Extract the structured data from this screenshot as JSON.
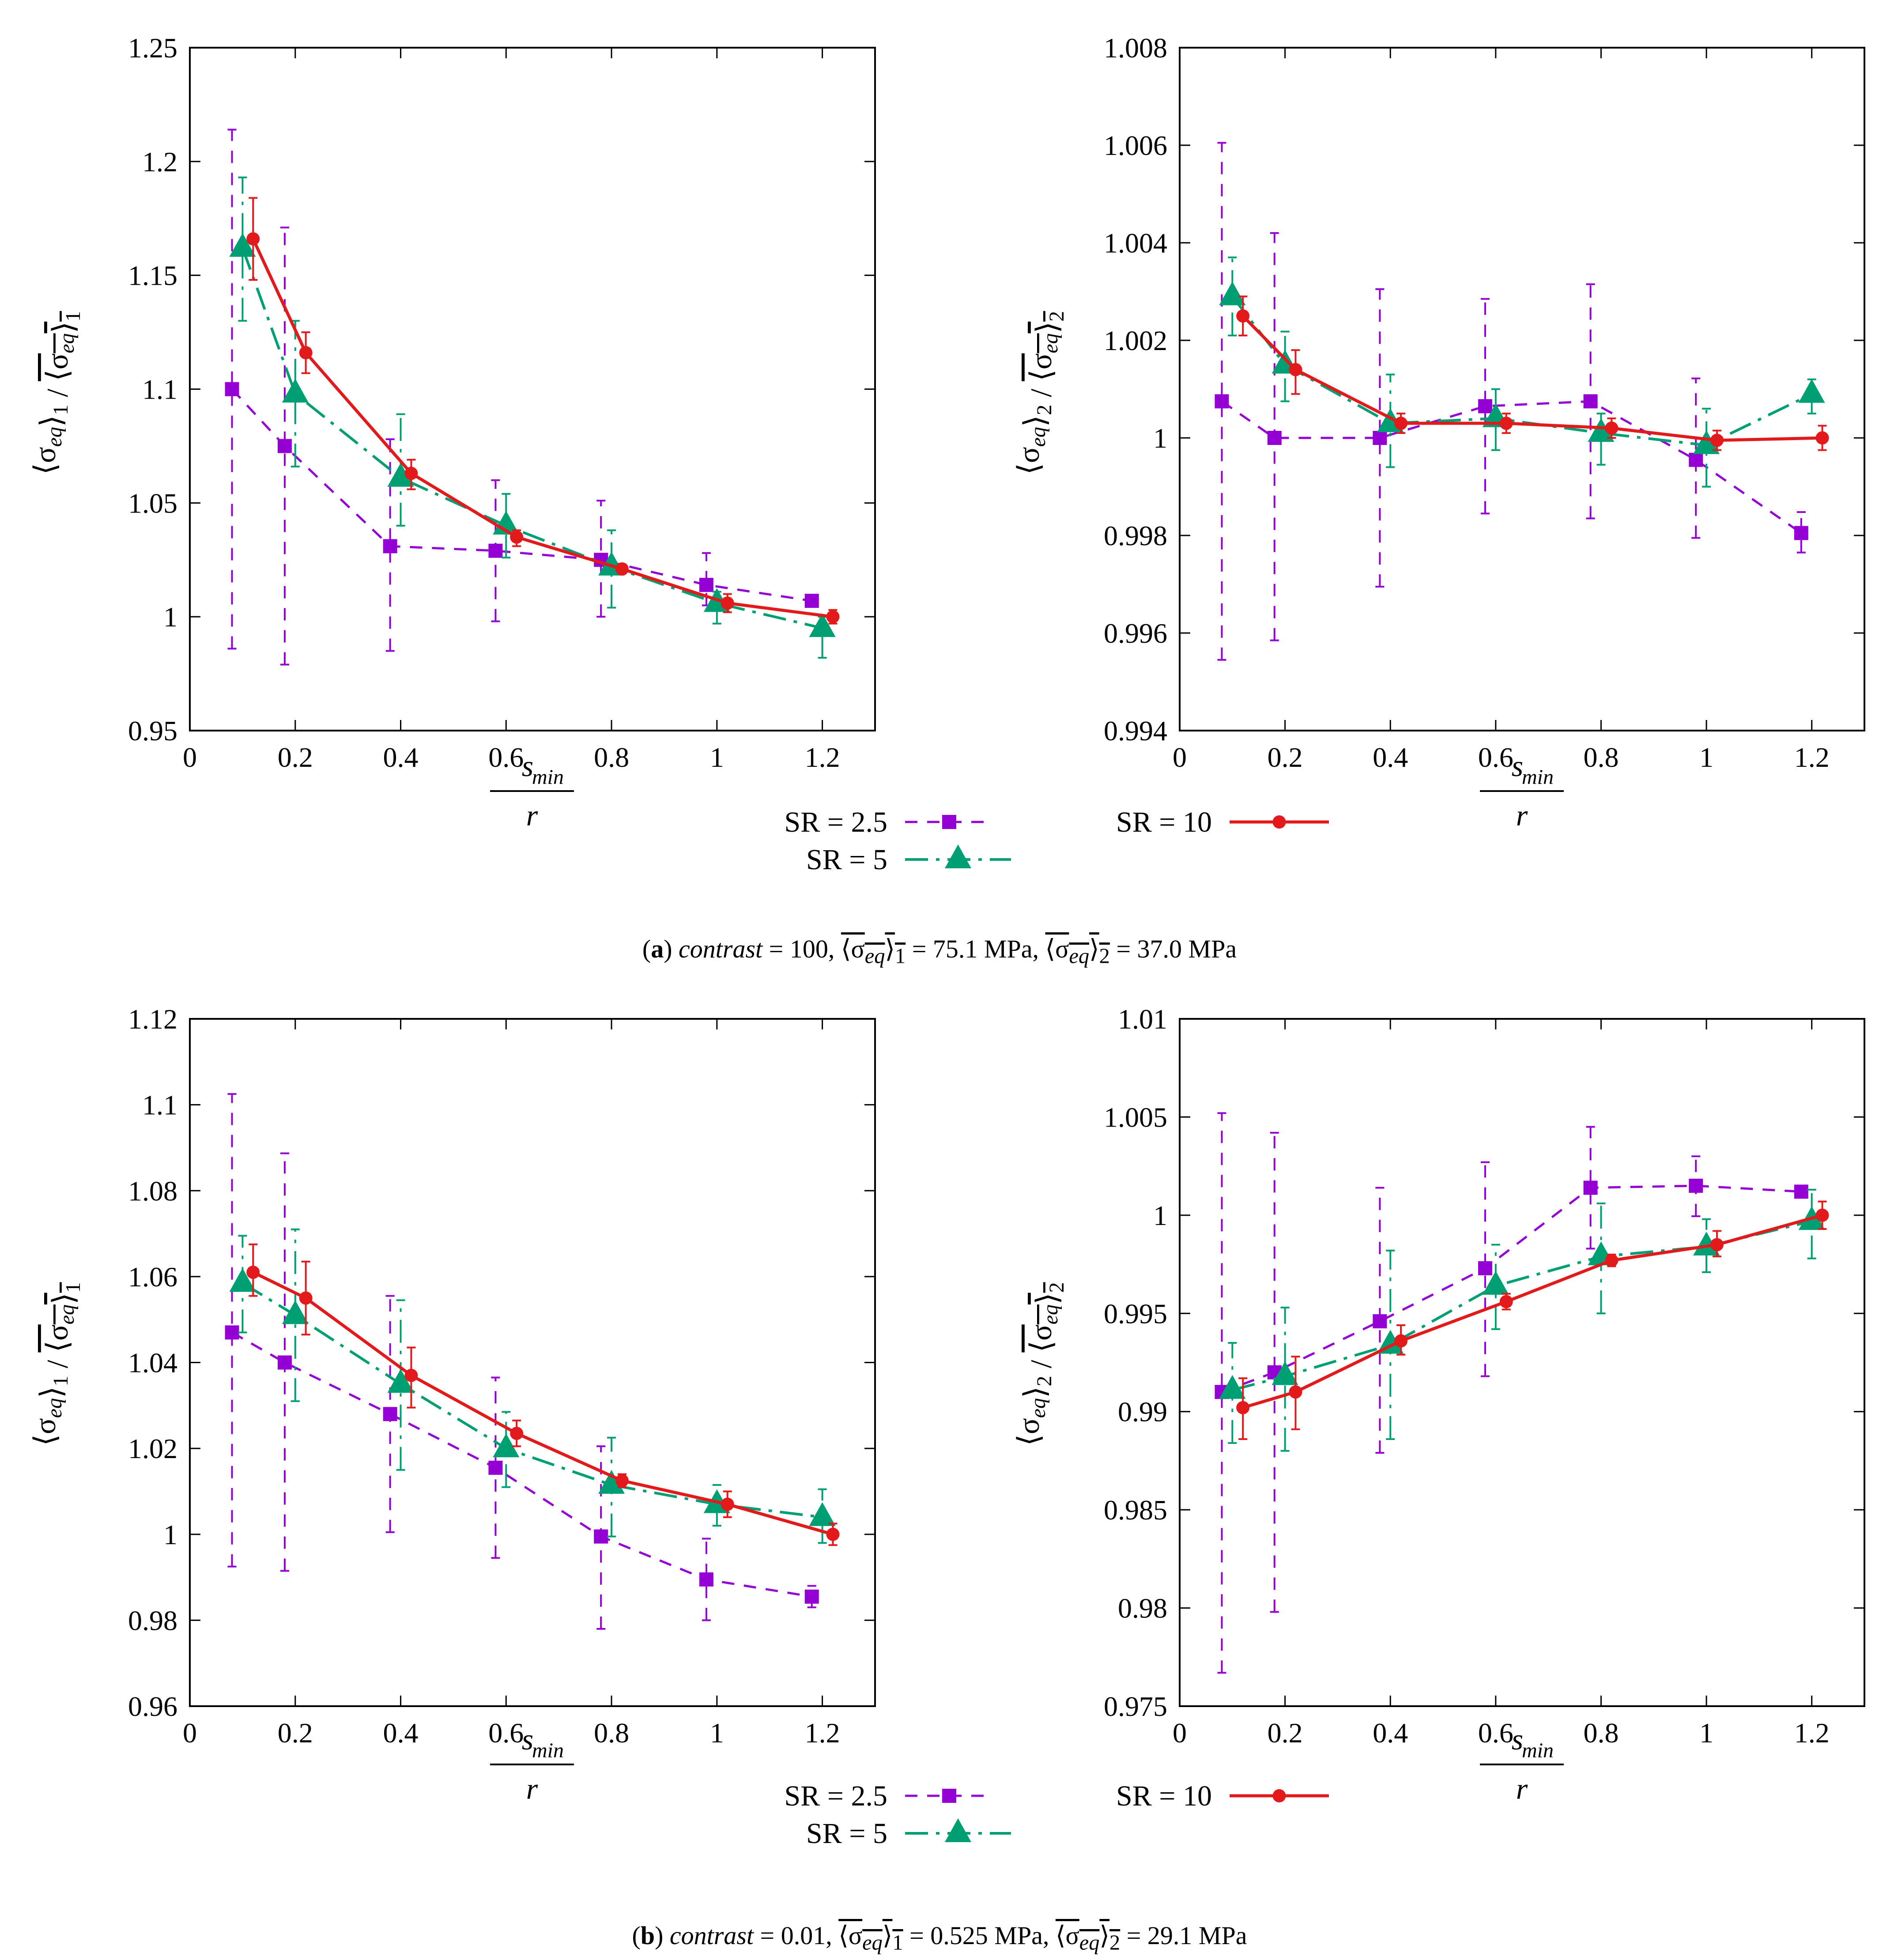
{
  "colors": {
    "sr25": "#9400D3",
    "sr5": "#009E73",
    "sr10": "#E31A1C"
  },
  "x_label": {
    "num": "s",
    "sub": "min",
    "den": "r"
  },
  "legend": {
    "sr25": "SR = 2.5",
    "sr5": "SR = 5",
    "sr10": "SR = 10"
  },
  "captions": {
    "a": {
      "tag": "a",
      "contrast_label": "contrast",
      "contrast_value": "= 100,",
      "mean1": "= 75.1 MPa,",
      "mean2": "= 37.0 MPa"
    },
    "b": {
      "tag": "b",
      "contrast_label": "contrast",
      "contrast_value": "= 0.01,",
      "mean1": "= 0.525 MPa,",
      "mean2": "= 29.1 MPa"
    }
  },
  "chart_data": [
    {
      "id": "a1",
      "type": "line",
      "ylabel_index": "1",
      "xlim": [
        0,
        1.3
      ],
      "ylim": [
        0.95,
        1.25
      ],
      "xticks": [
        "0",
        "0.2",
        "0.4",
        "0.6",
        "0.8",
        "1",
        "1.2"
      ],
      "yticks": [
        "0.95",
        "1",
        "1.05",
        "1.1",
        "1.15",
        "1.2",
        "1.25"
      ],
      "series": [
        {
          "name": "SR = 2.5",
          "key": "sr25",
          "x": [
            0.08,
            0.18,
            0.38,
            0.58,
            0.78,
            0.98,
            1.18
          ],
          "y": [
            1.1,
            1.075,
            1.031,
            1.029,
            1.025,
            1.014,
            1.007
          ],
          "lo": [
            0.986,
            0.979,
            0.985,
            0.998,
            1.0,
            1.005,
            1.005
          ],
          "hi": [
            1.214,
            1.171,
            1.078,
            1.06,
            1.051,
            1.028,
            1.009
          ]
        },
        {
          "name": "SR = 5",
          "key": "sr5",
          "x": [
            0.1,
            0.2,
            0.4,
            0.6,
            0.8,
            1.0,
            1.2
          ],
          "y": [
            1.162,
            1.098,
            1.061,
            1.04,
            1.022,
            1.006,
            0.995
          ],
          "lo": [
            1.13,
            1.066,
            1.04,
            1.026,
            1.004,
            0.997,
            0.982
          ],
          "hi": [
            1.193,
            1.13,
            1.089,
            1.054,
            1.038,
            1.011,
            1.0
          ]
        },
        {
          "name": "SR = 10",
          "key": "sr10",
          "x": [
            0.12,
            0.22,
            0.42,
            0.62,
            0.82,
            1.02,
            1.22
          ],
          "y": [
            1.166,
            1.116,
            1.063,
            1.035,
            1.021,
            1.006,
            1.0
          ],
          "lo": [
            1.148,
            1.107,
            1.056,
            1.031,
            1.019,
            1.002,
            0.997
          ],
          "hi": [
            1.184,
            1.125,
            1.069,
            1.038,
            1.023,
            1.01,
            1.003
          ]
        }
      ]
    },
    {
      "id": "a2",
      "type": "line",
      "ylabel_index": "2",
      "xlim": [
        0,
        1.3
      ],
      "ylim": [
        0.994,
        1.008
      ],
      "xticks": [
        "0",
        "0.2",
        "0.4",
        "0.6",
        "0.8",
        "1",
        "1.2"
      ],
      "yticks": [
        "0.994",
        "0.996",
        "0.998",
        "1",
        "1.002",
        "1.004",
        "1.006",
        "1.008"
      ],
      "series": [
        {
          "name": "SR = 2.5",
          "key": "sr25",
          "x": [
            0.08,
            0.18,
            0.38,
            0.58,
            0.78,
            0.98,
            1.18
          ],
          "y": [
            1.00075,
            1.0,
            1.0,
            1.00065,
            1.00075,
            0.99955,
            0.99805
          ],
          "lo": [
            0.99545,
            0.99585,
            0.99695,
            0.99845,
            0.99835,
            0.99795,
            0.99765
          ],
          "hi": [
            1.00605,
            1.0042,
            1.00305,
            1.00285,
            1.00315,
            1.00122,
            0.99848
          ]
        },
        {
          "name": "SR = 5",
          "key": "sr5",
          "x": [
            0.1,
            0.2,
            0.4,
            0.6,
            0.8,
            1.0,
            1.2
          ],
          "y": [
            1.0029,
            1.0015,
            1.0003,
            1.0004,
            1.0001,
            0.99985,
            1.0009
          ],
          "lo": [
            1.0021,
            1.00075,
            0.9994,
            0.99975,
            0.99945,
            0.999,
            1.0005
          ],
          "hi": [
            1.0037,
            1.00218,
            1.0013,
            1.001,
            1.0005,
            1.0006,
            1.0012
          ]
        },
        {
          "name": "SR = 10",
          "key": "sr10",
          "x": [
            0.12,
            0.22,
            0.42,
            0.62,
            0.82,
            1.02,
            1.22
          ],
          "y": [
            1.0025,
            1.0014,
            1.0003,
            1.0003,
            1.0002,
            0.99995,
            1.0
          ],
          "lo": [
            1.0021,
            1.0009,
            1.0001,
            1.0001,
            1.0,
            0.99975,
            0.99975
          ],
          "hi": [
            1.0029,
            1.0018,
            1.0005,
            1.0005,
            1.0004,
            1.00015,
            1.00025
          ]
        }
      ]
    },
    {
      "id": "b1",
      "type": "line",
      "ylabel_index": "1",
      "xlim": [
        0,
        1.3
      ],
      "ylim": [
        0.96,
        1.12
      ],
      "xticks": [
        "0",
        "0.2",
        "0.4",
        "0.6",
        "0.8",
        "1",
        "1.2"
      ],
      "yticks": [
        "0.96",
        "0.98",
        "1",
        "1.02",
        "1.04",
        "1.06",
        "1.08",
        "1.1",
        "1.12"
      ],
      "series": [
        {
          "name": "SR = 2.5",
          "key": "sr25",
          "x": [
            0.08,
            0.18,
            0.38,
            0.58,
            0.78,
            0.98,
            1.18
          ],
          "y": [
            1.047,
            1.04,
            1.028,
            1.0155,
            0.9995,
            0.9895,
            0.9855
          ],
          "lo": [
            0.9925,
            0.9915,
            1.0005,
            0.9945,
            0.978,
            0.98,
            0.983
          ],
          "hi": [
            1.1025,
            1.0887,
            1.0555,
            1.0365,
            1.0205,
            0.999,
            0.988
          ]
        },
        {
          "name": "SR = 5",
          "key": "sr5",
          "x": [
            0.1,
            0.2,
            0.4,
            0.6,
            0.8,
            1.0,
            1.2
          ],
          "y": [
            1.0585,
            1.051,
            1.035,
            1.02,
            1.0115,
            1.007,
            1.004
          ],
          "lo": [
            1.047,
            1.031,
            1.015,
            1.011,
            0.9995,
            1.002,
            0.998
          ],
          "hi": [
            1.0695,
            1.071,
            1.0545,
            1.0285,
            1.0225,
            1.0115,
            1.0105
          ]
        },
        {
          "name": "SR = 10",
          "key": "sr10",
          "x": [
            0.12,
            0.22,
            0.42,
            0.62,
            0.82,
            1.02,
            1.22
          ],
          "y": [
            1.061,
            1.055,
            1.037,
            1.0235,
            1.0125,
            1.007,
            1.0
          ],
          "lo": [
            1.0555,
            1.0465,
            1.0295,
            1.0205,
            1.011,
            1.004,
            0.9975
          ],
          "hi": [
            1.0675,
            1.0635,
            1.0435,
            1.0265,
            1.014,
            1.01,
            1.0025
          ]
        }
      ]
    },
    {
      "id": "b2",
      "type": "line",
      "ylabel_index": "2",
      "xlim": [
        0,
        1.3
      ],
      "ylim": [
        0.975,
        1.01
      ],
      "xticks": [
        "0",
        "0.2",
        "0.4",
        "0.6",
        "0.8",
        "1",
        "1.2"
      ],
      "yticks": [
        "0.975",
        "0.98",
        "0.985",
        "0.99",
        "0.995",
        "1",
        "1.005",
        "1.01"
      ],
      "series": [
        {
          "name": "SR = 2.5",
          "key": "sr25",
          "x": [
            0.08,
            0.18,
            0.38,
            0.58,
            0.78,
            0.98,
            1.18
          ],
          "y": [
            0.991,
            0.992,
            0.9946,
            0.9973,
            1.0014,
            1.0015,
            1.0012
          ],
          "lo": [
            0.9767,
            0.9798,
            0.9879,
            0.9918,
            0.9983,
            0.99995,
            1.0009
          ],
          "hi": [
            1.0052,
            1.0042,
            1.0014,
            1.0027,
            1.0045,
            1.003,
            1.0013
          ]
        },
        {
          "name": "SR = 5",
          "key": "sr5",
          "x": [
            0.1,
            0.2,
            0.4,
            0.6,
            0.8,
            1.0,
            1.2
          ],
          "y": [
            0.9911,
            0.9918,
            0.9934,
            0.9964,
            0.9979,
            0.9984,
            0.9997
          ],
          "lo": [
            0.9884,
            0.988,
            0.9886,
            0.9942,
            0.995,
            0.9971,
            0.9978
          ],
          "hi": [
            0.9935,
            0.9953,
            0.9982,
            0.9985,
            1.0006,
            0.9998,
            1.0013
          ]
        },
        {
          "name": "SR = 10",
          "key": "sr10",
          "x": [
            0.12,
            0.22,
            0.42,
            0.62,
            0.82,
            1.02,
            1.22
          ],
          "y": [
            0.9902,
            0.991,
            0.9936,
            0.9956,
            0.9977,
            0.9985,
            1.0
          ],
          "lo": [
            0.9886,
            0.9891,
            0.9929,
            0.9952,
            0.9974,
            0.9979,
            0.9993
          ],
          "hi": [
            0.9917,
            0.9928,
            0.9944,
            0.996,
            0.998,
            0.9992,
            1.0007
          ]
        }
      ]
    }
  ]
}
